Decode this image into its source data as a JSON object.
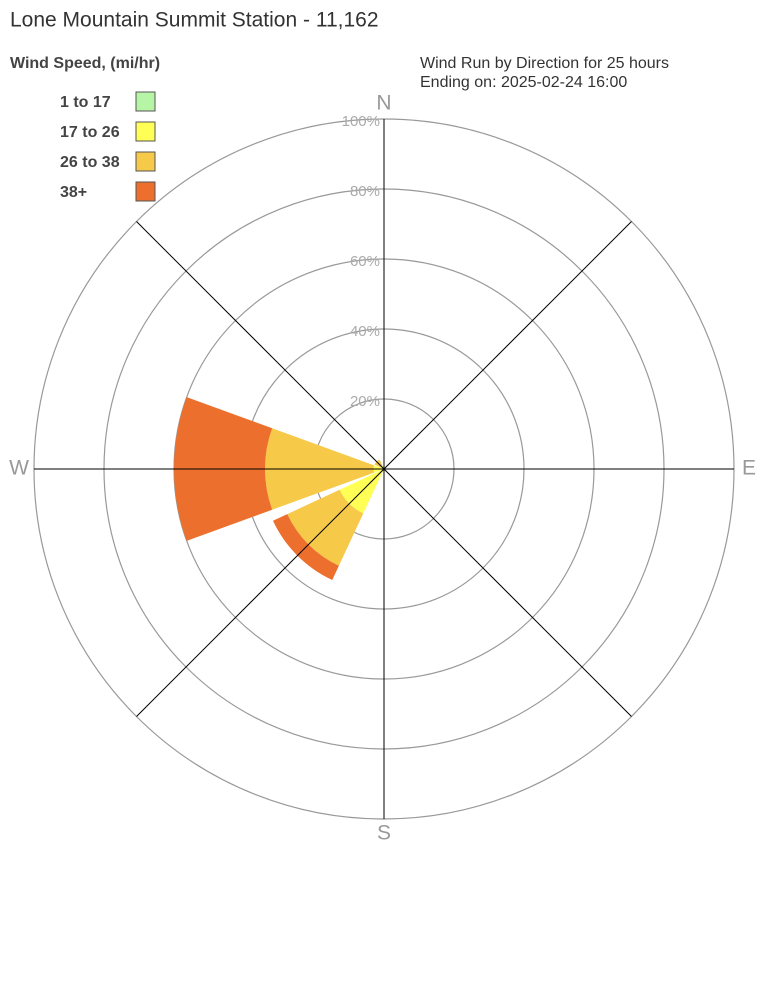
{
  "chart_data": {
    "type": "windrose",
    "title": "Lone Mountain Summit Station - 11,162",
    "legend_title": "Wind Speed, (mi/hr)",
    "subtitle": [
      "Wind Run by Direction for 25 hours",
      "Ending on: 2025-02-24 16:00"
    ],
    "categories": [
      "N",
      null,
      "E",
      null,
      "S",
      null,
      "W",
      null
    ],
    "series": [
      {
        "name": "1 to 17",
        "color": "#b5f5a5",
        "values": [
          0,
          0,
          0,
          0,
          0,
          0,
          0,
          0
        ]
      },
      {
        "name": "17 to 26",
        "color": "#ffff55",
        "values": [
          0,
          0,
          0,
          0,
          0,
          14,
          3,
          1
        ]
      },
      {
        "name": "26 to 38",
        "color": "#f7c948",
        "values": [
          0,
          0,
          0,
          0,
          0,
          16.5,
          31,
          2
        ]
      },
      {
        "name": "38+",
        "color": "#ec6f2d",
        "values": [
          0,
          0,
          0,
          0,
          0,
          4.5,
          26,
          0
        ]
      }
    ],
    "rlim": [
      0,
      100
    ],
    "rticks": [
      {
        "value": 20,
        "label": "20%"
      },
      {
        "value": 40,
        "label": "40%"
      },
      {
        "value": 60,
        "label": "60%"
      },
      {
        "value": 80,
        "label": "80%"
      },
      {
        "value": 100,
        "label": "100%"
      }
    ],
    "stacked": true,
    "legend": "top-left"
  }
}
